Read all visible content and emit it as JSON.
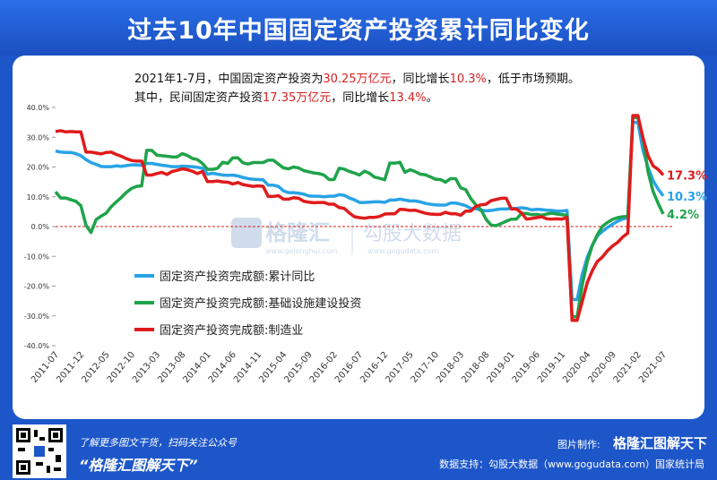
{
  "header": {
    "title": "过去10年中国固定资产投资累计同比变化"
  },
  "note": {
    "lines": [
      [
        {
          "text": "2021年1-7月，中国固定资产投资为",
          "highlight": false
        },
        {
          "text": "30.25万亿元",
          "highlight": true
        },
        {
          "text": "，同比增长",
          "highlight": false
        },
        {
          "text": "10.3%",
          "highlight": true
        },
        {
          "text": "，低于市场预期。",
          "highlight": false
        }
      ],
      [
        {
          "text": "其中，民间固定资产投资",
          "highlight": false
        },
        {
          "text": "17.35万亿元",
          "highlight": true
        },
        {
          "text": "，同比增长",
          "highlight": false
        },
        {
          "text": "13.4%",
          "highlight": true
        },
        {
          "text": "。",
          "highlight": false
        }
      ]
    ]
  },
  "watermark": {
    "brand": "格隆汇",
    "brand_url": "www.gelonghui.com",
    "data_brand": "勾股大数据",
    "data_url": "www.gogudata.com"
  },
  "chart_data": {
    "type": "line",
    "categories": [
      "2011-07",
      null,
      null,
      null,
      null,
      "2011-12",
      null,
      null,
      null,
      null,
      "2012-05",
      null,
      null,
      null,
      null,
      "2012-10",
      null,
      null,
      null,
      null,
      "2013-03",
      null,
      null,
      null,
      null,
      "2013-08",
      null,
      null,
      null,
      null,
      "2014-01",
      null,
      null,
      null,
      null,
      "2014-06",
      null,
      null,
      null,
      null,
      "2014-11",
      null,
      null,
      null,
      null,
      "2015-04",
      null,
      null,
      null,
      null,
      "2015-09",
      null,
      null,
      null,
      null,
      "2016-02",
      null,
      null,
      null,
      null,
      "2016-07",
      null,
      null,
      null,
      null,
      "2016-12",
      null,
      null,
      null,
      null,
      "2017-05",
      null,
      null,
      null,
      null,
      "2017-10",
      null,
      null,
      null,
      null,
      "2018-03",
      null,
      null,
      null,
      null,
      "2018-08",
      null,
      null,
      null,
      null,
      "2019-01",
      null,
      null,
      null,
      null,
      "2019-06",
      null,
      null,
      null,
      null,
      "2019-11",
      null,
      null,
      null,
      null,
      "2020-04",
      null,
      null,
      null,
      null,
      "2020-09",
      null,
      null,
      null,
      null,
      "2021-02",
      null,
      null,
      null,
      null,
      "2021-07"
    ],
    "series": [
      {
        "name": "固定资产投资完成额:累计同比",
        "color": "#29a3e6",
        "last_label": "10.3%",
        "values": [
          25.4,
          25.0,
          24.9,
          24.9,
          24.5,
          23.8,
          22.5,
          21.5,
          20.9,
          20.2,
          20.1,
          20.1,
          20.4,
          20.2,
          20.5,
          20.7,
          20.7,
          20.6,
          21.2,
          21.2,
          20.9,
          20.6,
          20.4,
          20.1,
          20.1,
          20.3,
          20.2,
          20.1,
          19.9,
          19.6,
          17.6,
          17.9,
          17.6,
          17.3,
          17.2,
          17.3,
          17.0,
          16.5,
          16.1,
          15.9,
          15.8,
          15.7,
          13.9,
          13.9,
          13.5,
          12.0,
          11.4,
          11.4,
          11.2,
          10.9,
          10.3,
          10.2,
          10.2,
          10.0,
          10.2,
          10.2,
          10.7,
          10.5,
          9.6,
          9.0,
          8.1,
          8.1,
          8.2,
          8.3,
          8.3,
          8.1,
          8.9,
          8.9,
          9.2,
          8.9,
          8.6,
          8.6,
          8.3,
          7.8,
          7.5,
          7.3,
          7.2,
          7.2,
          7.9,
          7.9,
          7.5,
          7.0,
          6.1,
          6.0,
          5.5,
          5.3,
          5.4,
          5.7,
          5.9,
          5.9,
          6.1,
          6.1,
          6.3,
          6.1,
          5.6,
          5.8,
          5.7,
          5.5,
          5.4,
          5.2,
          5.2,
          5.4,
          -24.5,
          -24.5,
          -16.1,
          -10.3,
          -6.3,
          -3.1,
          -1.6,
          -0.3,
          0.8,
          1.8,
          2.6,
          2.9,
          35.0,
          35.0,
          25.6,
          19.9,
          15.4,
          12.6,
          10.3
        ]
      },
      {
        "name": "固定资产投资完成额:基础设施建设投资",
        "color": "#1fa34a",
        "last_label": "4.2%",
        "values": [
          11.7,
          9.6,
          9.6,
          9.0,
          8.5,
          7.0,
          0.5,
          -2.0,
          2.3,
          3.5,
          4.5,
          6.7,
          8.3,
          9.8,
          11.5,
          12.8,
          13.5,
          13.7,
          25.6,
          25.6,
          24.0,
          23.8,
          23.6,
          23.4,
          23.4,
          24.5,
          23.9,
          22.9,
          22.5,
          21.2,
          19.2,
          19.2,
          19.6,
          21.6,
          21.2,
          23.1,
          23.1,
          21.4,
          21.0,
          21.5,
          21.5,
          21.5,
          22.3,
          22.3,
          21.0,
          19.7,
          19.4,
          20.0,
          19.7,
          18.8,
          18.4,
          18.0,
          17.8,
          17.3,
          15.8,
          15.8,
          19.6,
          19.3,
          18.5,
          18.0,
          17.3,
          18.6,
          17.9,
          16.6,
          16.2,
          15.7,
          21.3,
          21.3,
          21.6,
          18.2,
          19.1,
          18.5,
          17.6,
          17.4,
          16.7,
          15.9,
          15.8,
          14.9,
          16.1,
          16.1,
          13.0,
          12.4,
          9.4,
          7.3,
          5.7,
          2.5,
          0.5,
          0.3,
          1.0,
          1.8,
          2.5,
          2.5,
          4.4,
          4.4,
          4.0,
          4.1,
          3.8,
          4.2,
          4.5,
          4.2,
          4.0,
          3.8,
          -30.3,
          -30.3,
          -19.7,
          -11.8,
          -6.3,
          -2.7,
          0.1,
          1.4,
          2.4,
          3.0,
          3.3,
          3.4,
          36.6,
          36.6,
          29.7,
          18.4,
          11.8,
          7.8,
          4.2
        ]
      },
      {
        "name": "固定资产投资完成额:制造业",
        "color": "#e01b1b",
        "last_label": "17.3%",
        "values": [
          31.9,
          32.2,
          31.8,
          31.9,
          31.8,
          31.8,
          25.0,
          25.0,
          24.7,
          24.4,
          24.9,
          25.0,
          24.2,
          23.6,
          22.8,
          22.2,
          22.0,
          22.0,
          17.3,
          17.3,
          17.8,
          18.2,
          17.5,
          18.5,
          18.9,
          19.4,
          19.1,
          18.6,
          17.8,
          18.5,
          15.1,
          15.1,
          15.3,
          15.0,
          14.9,
          14.3,
          14.8,
          14.1,
          13.8,
          13.5,
          13.7,
          13.5,
          10.1,
          10.1,
          10.4,
          9.2,
          9.2,
          9.7,
          9.5,
          8.5,
          8.2,
          8.0,
          8.1,
          8.1,
          7.5,
          7.5,
          6.4,
          6.1,
          4.6,
          3.3,
          3.0,
          2.8,
          3.1,
          3.1,
          3.4,
          4.2,
          4.3,
          4.3,
          5.8,
          5.7,
          5.4,
          5.5,
          5.0,
          4.5,
          4.2,
          4.1,
          4.1,
          4.8,
          4.3,
          4.3,
          3.8,
          5.2,
          5.2,
          6.8,
          7.3,
          7.5,
          8.7,
          9.1,
          9.5,
          9.5,
          5.9,
          5.9,
          4.6,
          2.5,
          2.7,
          3.0,
          3.3,
          2.6,
          2.5,
          2.6,
          2.5,
          3.1,
          -31.5,
          -31.5,
          -25.2,
          -18.8,
          -14.8,
          -11.7,
          -10.2,
          -8.1,
          -6.5,
          -5.3,
          -3.5,
          -2.2,
          37.3,
          37.3,
          29.8,
          23.8,
          20.4,
          19.2,
          17.3
        ]
      }
    ],
    "ylim": [
      -40,
      40
    ],
    "yticks": [
      {
        "value": -40,
        "label": "-40.0%"
      },
      {
        "value": -30,
        "label": "-30.0%"
      },
      {
        "value": -20,
        "label": "-20.0%"
      },
      {
        "value": -10,
        "label": "-10.0%"
      },
      {
        "value": 0,
        "label": "0.0%"
      },
      {
        "value": 10,
        "label": "10.0%"
      },
      {
        "value": 20,
        "label": "20.0%"
      },
      {
        "value": 30,
        "label": "30.0%"
      },
      {
        "value": 40,
        "label": "40.0%"
      }
    ],
    "zero_line": true,
    "legend": "left"
  },
  "footer": {
    "promo": "了解更多图文干货，扫码关注公众号",
    "account": "“格隆汇图解天下”",
    "made_by_label": "图片制作:",
    "made_by": "格隆汇图解天下",
    "source": "数据支持：勾股大数据（www.gogudata.com）国家统计局"
  }
}
